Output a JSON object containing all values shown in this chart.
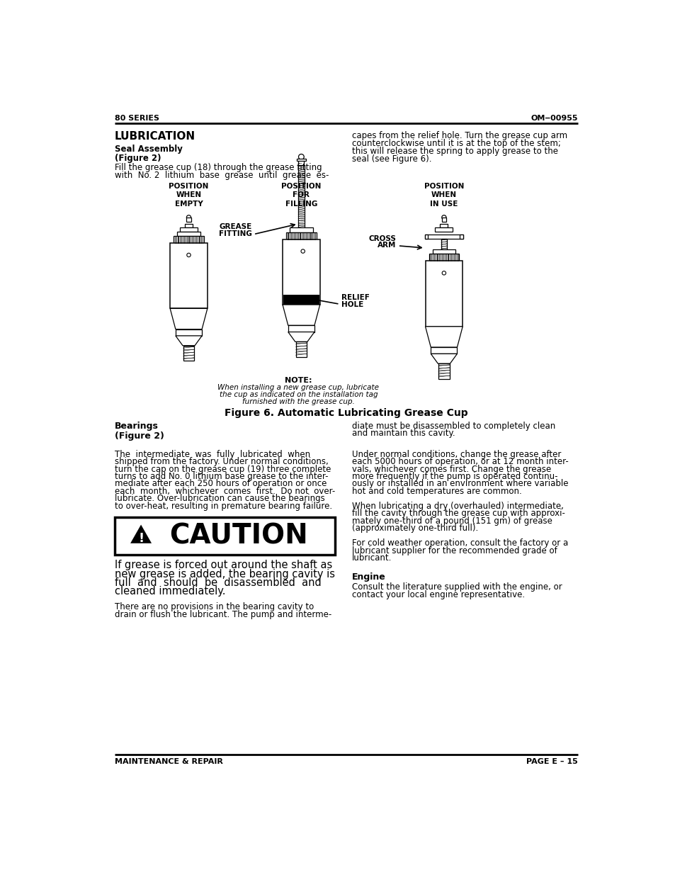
{
  "header_left": "80 SERIES",
  "header_right": "OM‒00955",
  "footer_left": "MAINTENANCE & REPAIR",
  "footer_right": "PAGE E – 15",
  "section_title": "LUBRICATION",
  "subsection1": "Seal Assembly",
  "subsection2": "(Figure 2)",
  "col1_para1_line1": "Fill the grease cup (18) through the grease fitting",
  "col1_para1_line2": "with  No. 2  lithium  base  grease  until  grease  es-",
  "col2_para1": "capes from the relief hole. Turn the grease cup arm\ncounterclockwise until it is at the top of the stem;\nthis will release the spring to apply grease to the\nseal (see Figure 6).",
  "pos_label1": "POSITION\nWHEN\nEMPTY",
  "pos_label2": "POSITION\nFOR\nFILLING",
  "pos_label3": "POSITION\nWHEN\nIN USE",
  "grease_fitting_label1": "GREASE",
  "grease_fitting_label2": "FITTING",
  "cross_arm_label1": "CROSS",
  "cross_arm_label2": "ARM",
  "relief_hole_label1": "RELIEF",
  "relief_hole_label2": "HOLE",
  "note_bold": "NOTE:",
  "note_italic_1": "When installing a new grease cup, lubricate",
  "note_italic_2": "the cup as indicated on the installation tag",
  "note_italic_3": "furnished with the grease cup.",
  "figure_caption": "Figure 6. Automatic Lubricating Grease Cup",
  "bearings_title": "Bearings",
  "bearings_sub": "(Figure 2)",
  "bearings_col1_lines": [
    "The  intermediate  was  fully  lubricated  when",
    "shipped from the factory. Under normal conditions,",
    "turn the cap on the grease cup (19) three complete",
    "turns to add No. 0 lithium base grease to the inter-",
    "mediate after each 250 hours of operation or once",
    "each  month,  whichever  comes  first.  Do not  over-",
    "lubricate. Over-lubrication can cause the bearings",
    "to over-heat, resulting in premature bearing failure."
  ],
  "bearings_col1_bold_word": "Do not",
  "caution_text": "CAUTION",
  "caution_body_lines": [
    "If grease is forced out around the shaft as",
    "new grease is added, the bearing cavity is",
    "full  and  should  be  disassembled  and",
    "cleaned immediately."
  ],
  "bearings_col1_p3_lines": [
    "There are no provisions in the bearing cavity to",
    "drain or flush the lubricant. The pump and interme-"
  ],
  "bearings_col2_p1_lines": [
    "diate must be disassembled to completely clean",
    "and maintain this cavity."
  ],
  "bearings_col2_p2_lines": [
    "Under normal conditions, change the grease after",
    "each 5000 hours of operation, or at 12 month inter-",
    "vals, whichever comes first. Change the grease",
    "more frequently if the pump is operated continu-",
    "ously or installed in an environment where variable",
    "hot and cold temperatures are common."
  ],
  "bearings_col2_p3_lines": [
    "When lubricating a dry (overhauled) intermediate,",
    "fill the cavity through the grease cup with approxi-",
    "mately one-third of a pound (151 gm) of grease",
    "(approximately one-third full)."
  ],
  "bearings_col2_p4_lines": [
    "For cold weather operation, consult the factory or a",
    "lubricant supplier for the recommended grade of",
    "lubricant."
  ],
  "engine_title": "Engine",
  "engine_col2_lines": [
    "Consult the literature supplied with the engine, or",
    "contact your local engine representative."
  ],
  "bg_color": "#ffffff",
  "text_color": "#000000"
}
